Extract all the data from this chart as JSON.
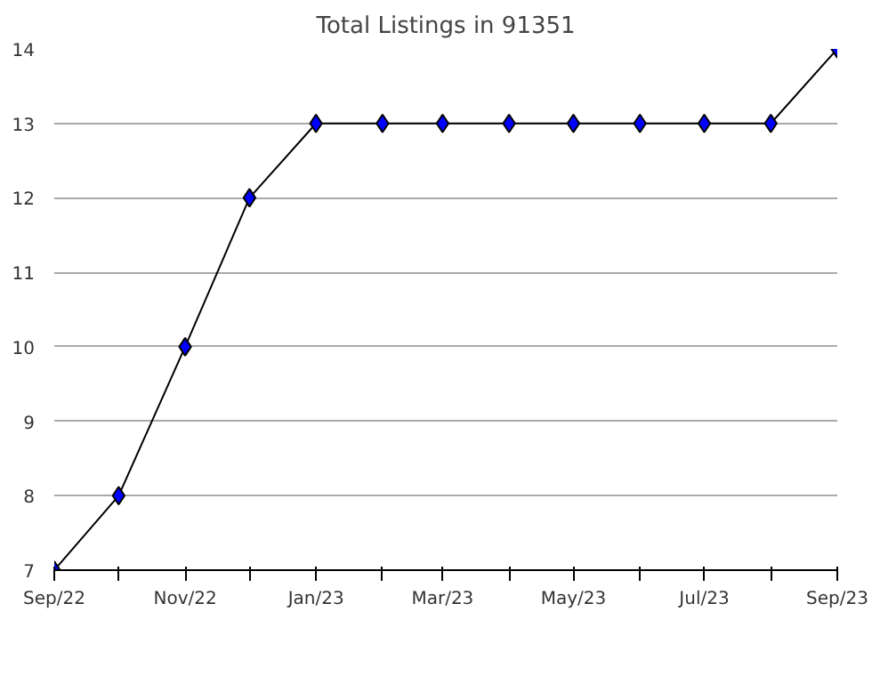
{
  "chart_data": {
    "type": "line",
    "title": "Total Listings in 91351",
    "x": [
      "2022-09",
      "2022-10",
      "2022-11",
      "2022-12",
      "2023-01",
      "2023-02",
      "2023-03",
      "2023-04",
      "2023-05",
      "2023-06",
      "2023-07",
      "2023-08",
      "2023-09"
    ],
    "series": [
      {
        "color": "#0000ff",
        "values": [
          7,
          8,
          10,
          12,
          13,
          13,
          13,
          13,
          13,
          13,
          13,
          13,
          14
        ]
      }
    ],
    "xlim": [
      "2022-09",
      "2023-09"
    ],
    "xticks": [
      {
        "value": "2022-09",
        "label": "Sep/22"
      },
      {
        "value": "2022-10",
        "label": null
      },
      {
        "value": "2022-11",
        "label": "Nov/22"
      },
      {
        "value": "2022-12",
        "label": null
      },
      {
        "value": "2023-01",
        "label": "Jan/23"
      },
      {
        "value": "2023-02",
        "label": null
      },
      {
        "value": "2023-03",
        "label": "Mar/23"
      },
      {
        "value": "2023-04",
        "label": null
      },
      {
        "value": "2023-05",
        "label": "May/23"
      },
      {
        "value": "2023-06",
        "label": null
      },
      {
        "value": "2023-07",
        "label": "Jul/23"
      },
      {
        "value": "2023-08",
        "label": null
      },
      {
        "value": "2023-09",
        "label": "Sep/23"
      }
    ],
    "ylim": [
      7,
      14
    ],
    "yticks": [
      7,
      8,
      9,
      10,
      11,
      12,
      13,
      14
    ],
    "grid": "y",
    "marker": "diamond",
    "line_style": "solid"
  }
}
